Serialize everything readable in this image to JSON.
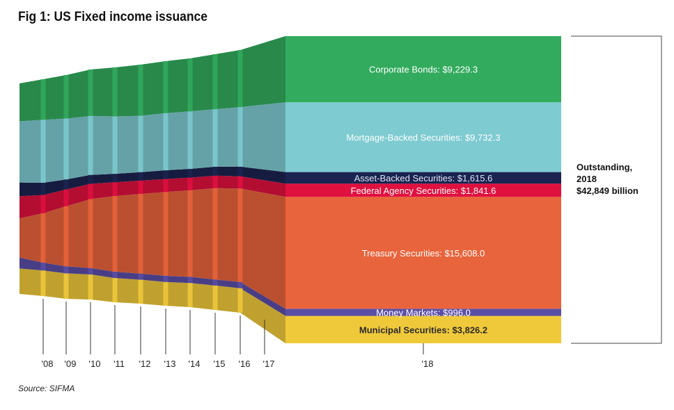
{
  "title": "Fig 1: US Fixed income issuance",
  "source": "Source: SIFMA",
  "total": {
    "line1": "Outstanding,",
    "line2": "2018",
    "line3": "$42,849 billion"
  },
  "chart_data": {
    "type": "area",
    "title": "Fig 1: US Fixed income issuance",
    "x": [
      "'08",
      "'09",
      "'10",
      "'11",
      "'12",
      "'13",
      "'14",
      "'15",
      "'16",
      "'17",
      "'18"
    ],
    "unit": "billion",
    "series": [
      {
        "name": "Municipal Securities",
        "label": "Municipal Securities: $3,826.2",
        "color": "#f0c93b",
        "final_value": 3826.2,
        "values": [
          3700,
          3780,
          3800,
          3780,
          3720,
          3700,
          3660,
          3740,
          3810,
          3830,
          3826.2
        ]
      },
      {
        "name": "Money Markets",
        "label": "Money Markets: $996.0",
        "color": "#5b4ea6",
        "final_value": 996.0,
        "values": [
          1600,
          1150,
          1050,
          970,
          960,
          950,
          950,
          950,
          940,
          960,
          996.0
        ]
      },
      {
        "name": "Treasury Securities",
        "label": "Treasury Securities: $15,608.0",
        "color": "#e8643c",
        "final_value": 15608.0,
        "values": [
          5700,
          7300,
          9000,
          10400,
          11600,
          12300,
          12900,
          13400,
          14300,
          14600,
          15608.0
        ]
      },
      {
        "name": "Federal Agency Securities",
        "label": "Federal Agency Securities: $1,841.6",
        "color": "#e0103f",
        "final_value": 1841.6,
        "values": [
          3200,
          2700,
          2500,
          2300,
          2100,
          2050,
          2000,
          1950,
          1950,
          1900,
          1841.6
        ]
      },
      {
        "name": "Asset-Backed Securities",
        "label": "Asset-Backed Securities: $1,615.6",
        "color": "#1b2350",
        "final_value": 1615.6,
        "values": [
          2000,
          1800,
          1500,
          1350,
          1300,
          1300,
          1350,
          1350,
          1400,
          1500,
          1615.6
        ]
      },
      {
        "name": "Mortgage-Backed Securities",
        "label": "Mortgage-Backed Securities: $9,732.3",
        "color": "#7ecbd1",
        "final_value": 9732.3,
        "values": [
          8900,
          9300,
          9100,
          8900,
          8800,
          8700,
          8800,
          8900,
          9000,
          9300,
          9732.3
        ]
      },
      {
        "name": "Corporate Bonds",
        "label": "Corporate Bonds: $9,229.3",
        "color": "#32ab5e",
        "final_value": 9229.3,
        "values": [
          5500,
          6000,
          6500,
          7000,
          7500,
          7900,
          8000,
          8200,
          8600,
          8900,
          9229.3
        ]
      }
    ]
  }
}
